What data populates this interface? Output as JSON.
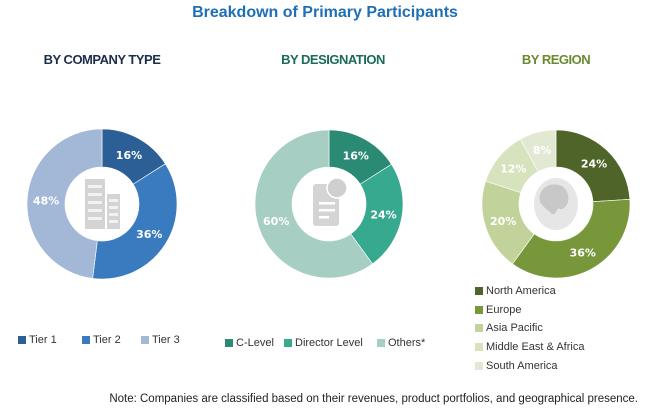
{
  "title": "Breakdown of Primary Participants",
  "note": "Note: Companies are classified based on their revenues, product portfolios, and geographical presence.",
  "chart_data": [
    {
      "type": "pie",
      "title": "BY COMPANY TYPE",
      "title_color": "#1f2d4d",
      "center_icon": "building-icon",
      "categories": [
        "Tier 1",
        "Tier 2",
        "Tier 3"
      ],
      "values": [
        16,
        36,
        48
      ],
      "labels": [
        "16%",
        "36%",
        "48%"
      ],
      "colors": [
        "#2b5f96",
        "#3a7bbf",
        "#a3b8d6"
      ]
    },
    {
      "type": "pie",
      "title": "BY DESIGNATION",
      "title_color": "#1c6b5a",
      "center_icon": "certificate-document-icon",
      "categories": [
        "C-Level",
        "Director Level",
        "Others*"
      ],
      "values": [
        16,
        24,
        60
      ],
      "labels": [
        "16%",
        "24%",
        "60%"
      ],
      "colors": [
        "#2a8a73",
        "#36a98f",
        "#a6cec3"
      ]
    },
    {
      "type": "pie",
      "title": "BY REGION",
      "title_color": "#6a8a2e",
      "center_icon": "globe-icon",
      "categories": [
        "North America",
        "Europe",
        "Asia Pacific",
        "Middle East & Africa",
        "South America"
      ],
      "values": [
        24,
        36,
        20,
        12,
        8
      ],
      "labels": [
        "24%",
        "36%",
        "20%",
        "12%",
        "8%"
      ],
      "colors": [
        "#4e6428",
        "#78963a",
        "#c1d39a",
        "#d7e3bd",
        "#e2e9d2"
      ]
    }
  ]
}
